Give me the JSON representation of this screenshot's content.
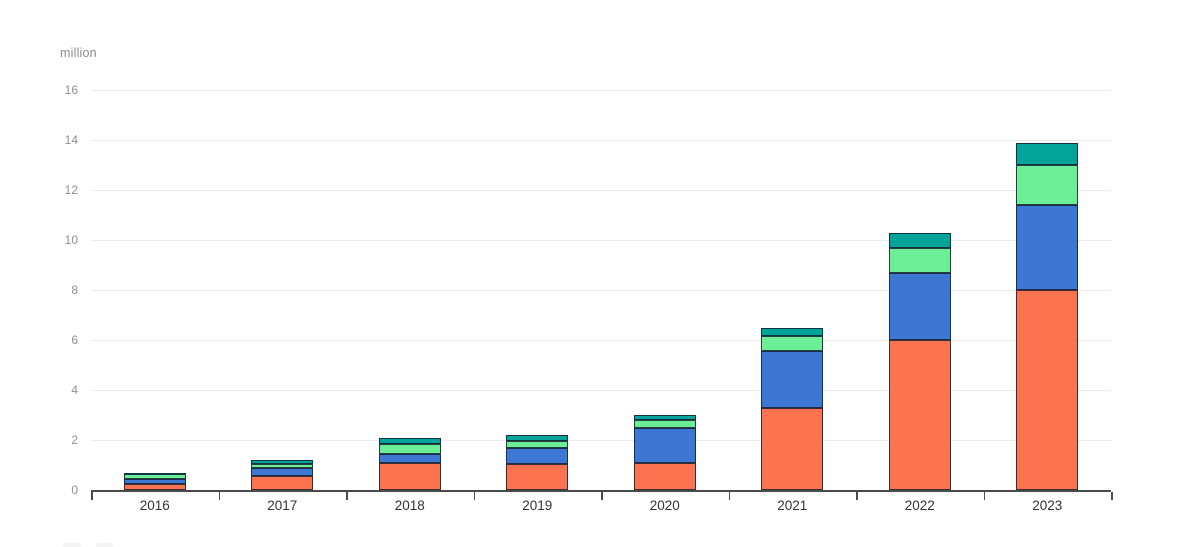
{
  "unit_label": "million",
  "colors": {
    "orange": "#FC7350",
    "blue": "#3D77D3",
    "light_green": "#6CEE97",
    "teal": "#02A49A",
    "axis_line": "#4a4a4a",
    "gridline": "#ececec",
    "y_label_text": "#8f8f8f",
    "x_label_text": "#333333",
    "segment_border": "#16202f"
  },
  "chart_data": {
    "type": "bar",
    "stacked": true,
    "title": "",
    "ylabel": "million",
    "xlabel": "",
    "ylim": [
      0,
      16
    ],
    "y_tick_step": 2,
    "y_tick_labels": [
      "0",
      "2",
      "4",
      "6",
      "8",
      "10",
      "12",
      "14",
      "16"
    ],
    "grid": true,
    "legend_position": "bottom (cut off / not visible)",
    "categories": [
      "2016",
      "2017",
      "2018",
      "2019",
      "2020",
      "2021",
      "2022",
      "2023"
    ],
    "series": [
      {
        "name": "orange",
        "color": "#FC7350",
        "values": [
          0.25,
          0.55,
          1.1,
          1.05,
          1.1,
          3.3,
          6.0,
          8.0
        ]
      },
      {
        "name": "blue",
        "color": "#3D77D3",
        "values": [
          0.2,
          0.35,
          0.35,
          0.65,
          1.4,
          2.25,
          2.7,
          3.4
        ]
      },
      {
        "name": "light-green",
        "color": "#6CEE97",
        "values": [
          0.2,
          0.15,
          0.4,
          0.25,
          0.3,
          0.6,
          1.0,
          1.6
        ]
      },
      {
        "name": "teal",
        "color": "#02A49A",
        "values": [
          0.05,
          0.15,
          0.25,
          0.25,
          0.2,
          0.35,
          0.6,
          0.9
        ]
      }
    ],
    "totals": [
      0.7,
      1.2,
      2.1,
      2.2,
      3.0,
      6.5,
      10.3,
      13.9
    ]
  }
}
